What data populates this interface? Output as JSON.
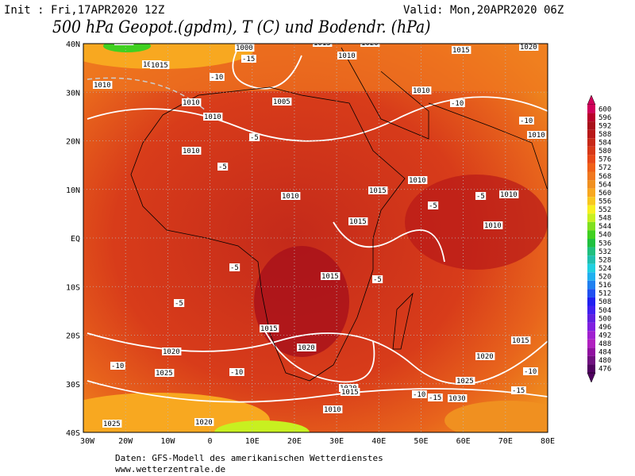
{
  "header": {
    "init": "Init : Fri,17APR2020 12Z",
    "valid": "Valid: Mon,20APR2020 06Z",
    "title": "500 hPa Geopot.(gpdm), T (C) und Bodendr. (hPa)"
  },
  "axes": {
    "lat": [
      "40N",
      "30N",
      "20N",
      "10N",
      "EQ",
      "10S",
      "20S",
      "30S",
      "40S"
    ],
    "lon": [
      "30W",
      "20W",
      "10W",
      "0",
      "10E",
      "20E",
      "30E",
      "40E",
      "50E",
      "60E",
      "70E",
      "80E"
    ]
  },
  "colorbar": [
    "600",
    "596",
    "592",
    "588",
    "584",
    "580",
    "576",
    "572",
    "568",
    "564",
    "560",
    "556",
    "552",
    "548",
    "544",
    "540",
    "536",
    "532",
    "528",
    "524",
    "520",
    "516",
    "512",
    "508",
    "504",
    "500",
    "496",
    "492",
    "488",
    "484",
    "480",
    "476"
  ],
  "contour_labels": [
    "1005",
    "1010",
    "1015",
    "1000",
    "-15",
    "-10",
    "1010",
    "1015",
    "1020",
    "1015",
    "1020",
    "1010",
    "1005",
    "1010",
    "-10",
    "1010",
    "-10",
    "1010",
    "-5",
    "-5",
    "1010",
    "-5",
    "1010",
    "1015",
    "1010",
    "-5",
    "1010",
    "1015",
    "1015",
    "-5",
    "1020",
    "1015",
    "1020",
    "-10",
    "1025",
    "-10",
    "1020",
    "1015",
    "1010",
    "-15",
    "1025",
    "1020",
    "1030",
    "-15",
    "1020",
    "-10",
    "1025",
    "1015",
    "-5",
    "-5",
    "-10",
    "1010",
    "1010"
  ],
  "footer": {
    "source": "Daten: GFS-Modell des amerikanischen Wetterdienstes",
    "site": "www.wetterzentrale.de"
  }
}
